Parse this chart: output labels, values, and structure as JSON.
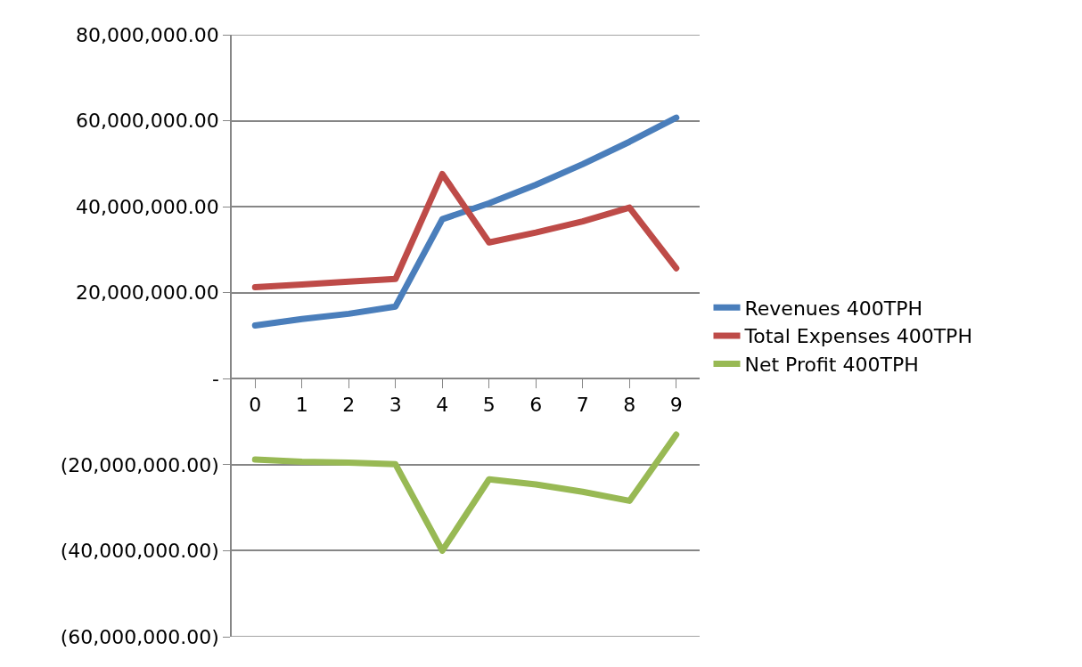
{
  "chart_data": {
    "type": "line",
    "categories": [
      "0",
      "1",
      "2",
      "3",
      "4",
      "5",
      "6",
      "7",
      "8",
      "9"
    ],
    "series": [
      {
        "name": "Revenues 400TPH",
        "color": "#4a7ebb",
        "values": [
          12400000,
          13900000,
          15100000,
          16800000,
          37100000,
          40800000,
          45100000,
          49900000,
          55100000,
          60700000
        ]
      },
      {
        "name": "Total Expenses 400TPH",
        "color": "#be4b48",
        "values": [
          21300000,
          21900000,
          22600000,
          23200000,
          47600000,
          31700000,
          34000000,
          36600000,
          39800000,
          25700000
        ]
      },
      {
        "name": "Net Profit 400TPH",
        "color": "#98b954",
        "values": [
          -18800000,
          -19300000,
          -19500000,
          -19900000,
          -40000000,
          -23400000,
          -24600000,
          -26300000,
          -28400000,
          -13000000
        ]
      }
    ],
    "ylim": [
      -60000000,
      80000000
    ],
    "yticks": [
      {
        "value": -60000000,
        "label": "(60,000,000.00)"
      },
      {
        "value": -40000000,
        "label": "(40,000,000.00)"
      },
      {
        "value": -20000000,
        "label": "(20,000,000.00)"
      },
      {
        "value": 0,
        "label": "-"
      },
      {
        "value": 20000000,
        "label": "20,000,000.00"
      },
      {
        "value": 40000000,
        "label": "40,000,000.00"
      },
      {
        "value": 60000000,
        "label": "60,000,000.00"
      },
      {
        "value": 80000000,
        "label": "80,000,000.00"
      }
    ],
    "grid": "y",
    "legend": "right",
    "marker": "none",
    "line_style": "solid"
  }
}
